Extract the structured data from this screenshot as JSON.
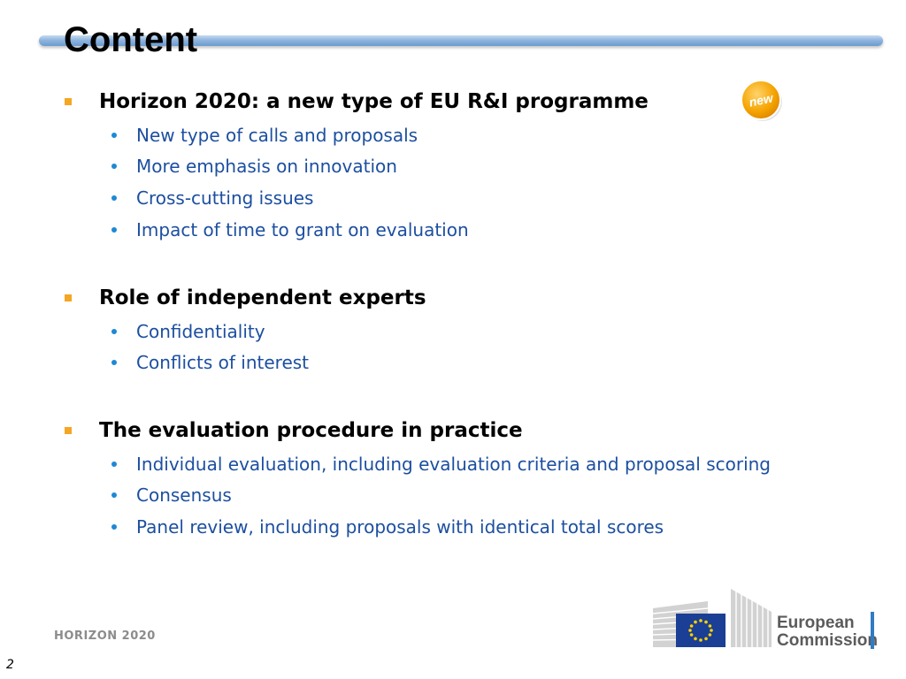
{
  "slide": {
    "title": "Content",
    "badge_text": "new",
    "sections": [
      {
        "heading": "Horizon 2020: a new type of EU R&I programme",
        "items": [
          "New type of calls and proposals",
          "More emphasis on innovation",
          "Cross-cutting issues",
          "Impact of time to grant on evaluation"
        ]
      },
      {
        "heading": "Role of independent experts",
        "items": [
          "Confidentiality",
          "Conflicts of interest"
        ]
      },
      {
        "heading": "The evaluation procedure in practice",
        "items": [
          "Individual evaluation, including evaluation criteria and proposal scoring",
          "Consensus",
          "Panel review, including proposals with identical total scores"
        ]
      }
    ]
  },
  "footer": {
    "label": "HORIZON 2020",
    "page_number": "2",
    "logo_line1": "European",
    "logo_line2": "Commission"
  },
  "colors": {
    "section_bullet": "#f5a623",
    "sub_bullet": "#1e88d6",
    "sub_text": "#1c4fa0",
    "title_bar": "#7fa9d8",
    "eu_flag": "#1b3f94",
    "eu_star": "#ffd200"
  }
}
